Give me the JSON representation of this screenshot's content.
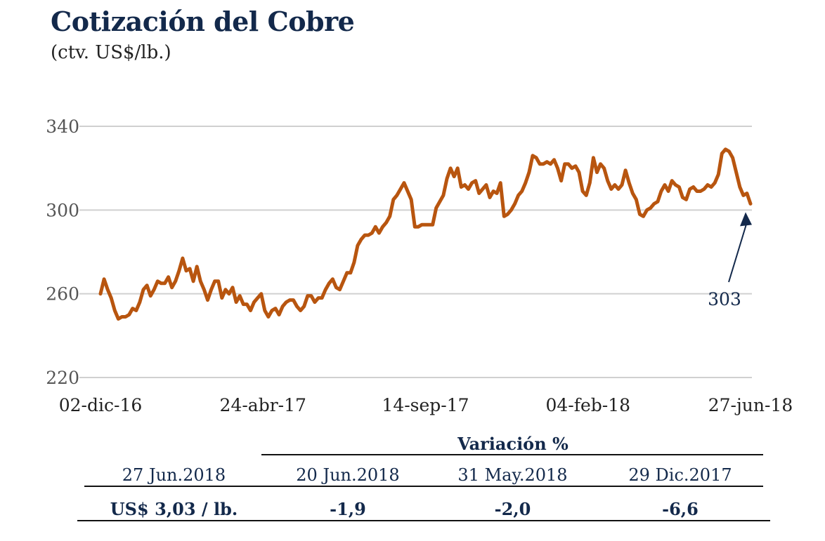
{
  "header": {
    "title": "Cotización del Cobre",
    "subtitle": "(ctv. US$/lb.)"
  },
  "colors": {
    "line": "#b8550f",
    "title": "#13294b",
    "grid": "#d0d0d0",
    "axis_text": "#555555",
    "annotation": "#13294b"
  },
  "chart_data": {
    "type": "line",
    "title": "Cotización del Cobre",
    "ylabel": "(ctv. US$/lb.)",
    "ylim": [
      220,
      340
    ],
    "yticks": [
      220,
      260,
      300,
      340
    ],
    "xtick_labels": [
      "02-dic-16",
      "24-abr-17",
      "14-sep-17",
      "04-feb-18",
      "27-jun-18"
    ],
    "grid": true,
    "annotation": {
      "label": "303",
      "value": 303,
      "point": "last"
    },
    "series": [
      {
        "values": [
          260,
          267,
          262,
          258,
          252,
          248,
          249,
          249,
          250,
          253,
          252,
          256,
          262,
          264,
          259,
          262,
          266,
          265,
          265,
          268,
          263,
          266,
          271,
          277,
          271,
          272,
          266,
          273,
          266,
          262,
          257,
          262,
          266,
          266,
          258,
          262,
          260,
          263,
          256,
          259,
          255,
          255,
          252,
          256,
          258,
          260,
          252,
          249,
          252,
          253,
          250,
          254,
          256,
          257,
          257,
          254,
          252,
          254,
          259,
          259,
          256,
          258,
          258,
          262,
          265,
          267,
          263,
          262,
          266,
          270,
          270,
          275,
          283,
          286,
          288,
          288,
          289,
          292,
          289,
          292,
          294,
          297,
          305,
          307,
          310,
          313,
          309,
          305,
          292,
          292,
          293,
          293,
          293,
          293,
          301,
          304,
          307,
          315,
          320,
          316,
          320,
          311,
          312,
          310,
          313,
          314,
          308,
          310,
          312,
          306,
          309,
          308,
          313,
          297,
          298,
          300,
          303,
          307,
          309,
          313,
          318,
          326,
          325,
          322,
          322,
          323,
          322,
          324,
          320,
          314,
          322,
          322,
          320,
          321,
          318,
          309,
          307,
          313,
          325,
          318,
          322,
          320,
          314,
          310,
          312,
          310,
          312,
          319,
          313,
          308,
          305,
          298,
          297,
          300,
          301,
          303,
          304,
          309,
          312,
          309,
          314,
          312,
          311,
          306,
          305,
          310,
          311,
          309,
          309,
          310,
          312,
          311,
          313,
          317,
          327,
          329,
          328,
          325,
          318,
          311,
          307,
          308,
          303
        ]
      }
    ]
  },
  "table": {
    "variacion_header": "Variación %",
    "col_headers": [
      "27 Jun.2018",
      "20 Jun.2018",
      "31 May.2018",
      "29 Dic.2017"
    ],
    "values": [
      "US$ 3,03 / lb.",
      "-1,9",
      "-2,0",
      "-6,6"
    ]
  }
}
